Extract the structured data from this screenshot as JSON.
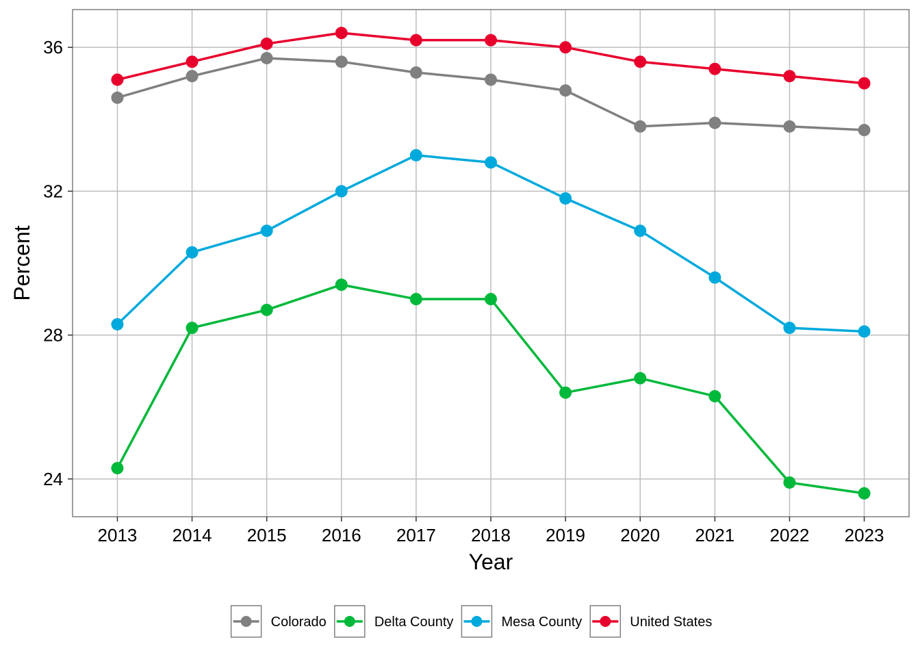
{
  "chart_data": {
    "type": "line",
    "title": "",
    "xlabel": "Year",
    "ylabel": "Percent",
    "x": [
      2013,
      2014,
      2015,
      2016,
      2017,
      2018,
      2019,
      2020,
      2021,
      2022,
      2023
    ],
    "x_tick_labels": [
      "2013",
      "2014",
      "2015",
      "2016",
      "2017",
      "2018",
      "2019",
      "2020",
      "2021",
      "2022",
      "2023"
    ],
    "y_ticks": [
      24,
      28,
      32,
      36
    ],
    "y_tick_labels": [
      "24",
      "28",
      "32",
      "36"
    ],
    "ylim": [
      22.95,
      37.05
    ],
    "xlim": [
      2012.4,
      2023.6
    ],
    "grid": true,
    "legend_position": "bottom",
    "series": [
      {
        "name": "Colorado",
        "color": "#808080",
        "values": [
          34.6,
          35.2,
          35.7,
          35.6,
          35.3,
          35.1,
          34.8,
          33.8,
          33.9,
          33.8,
          33.7
        ]
      },
      {
        "name": "Delta County",
        "color": "#00B83A",
        "values": [
          24.3,
          28.2,
          28.7,
          29.4,
          29.0,
          29.0,
          26.4,
          26.8,
          26.3,
          23.9,
          23.6
        ]
      },
      {
        "name": "Mesa County",
        "color": "#00A9DC",
        "values": [
          28.3,
          30.3,
          30.9,
          32.0,
          33.0,
          32.8,
          31.8,
          30.9,
          29.6,
          28.2,
          28.1
        ]
      },
      {
        "name": "United States",
        "color": "#E8002D",
        "values": [
          35.1,
          35.6,
          36.1,
          36.4,
          36.2,
          36.2,
          36.0,
          35.6,
          35.4,
          35.2,
          35.0
        ]
      }
    ]
  }
}
